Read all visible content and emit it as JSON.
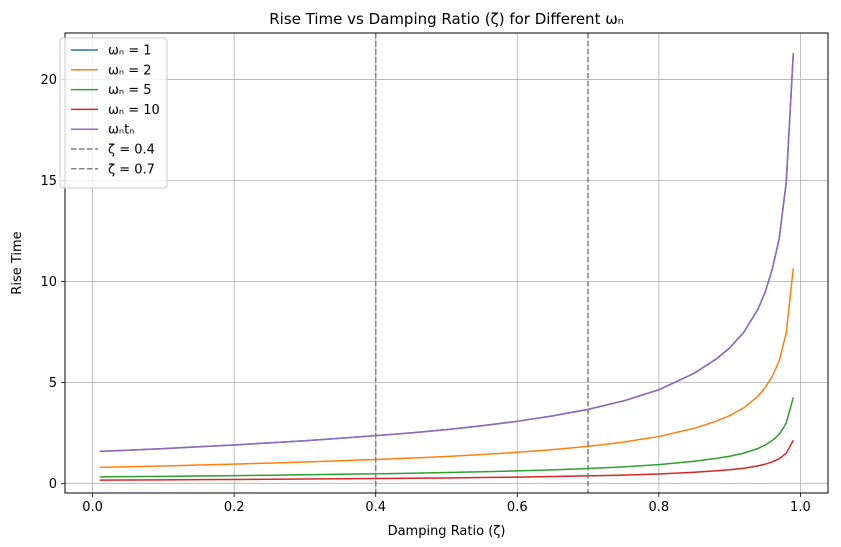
{
  "chart_data": {
    "type": "line",
    "title": "Rise Time vs Damping Ratio (ζ) for Different ωₙ",
    "xlabel": "Damping Ratio (ζ)",
    "ylabel": "Rise Time",
    "xlim": [
      -0.039,
      1.039
    ],
    "ylim": [
      -0.48,
      22.3
    ],
    "xticks": [
      0.0,
      0.2,
      0.4,
      0.6,
      0.8,
      1.0
    ],
    "xtick_labels": [
      "0.0",
      "0.2",
      "0.4",
      "0.6",
      "0.8",
      "1.0"
    ],
    "yticks": [
      0,
      5,
      10,
      15,
      20
    ],
    "ytick_labels": [
      "0",
      "5",
      "10",
      "15",
      "20"
    ],
    "grid": true,
    "legend_position": "top-left",
    "x": [
      0.01,
      0.05,
      0.1,
      0.15,
      0.2,
      0.25,
      0.3,
      0.35,
      0.4,
      0.45,
      0.5,
      0.55,
      0.6,
      0.65,
      0.7,
      0.75,
      0.8,
      0.85,
      0.88,
      0.9,
      0.92,
      0.94,
      0.95,
      0.96,
      0.97,
      0.98,
      0.99
    ],
    "series": [
      {
        "name": "ωₙ = 1",
        "color": "#1f77b4",
        "dashed": false,
        "values": [
          1.58,
          1.64,
          1.72,
          1.81,
          1.9,
          2.0,
          2.11,
          2.23,
          2.36,
          2.5,
          2.66,
          2.85,
          3.07,
          3.34,
          3.66,
          4.08,
          4.63,
          5.45,
          6.13,
          6.7,
          7.48,
          8.62,
          9.45,
          10.57,
          12.11,
          14.91,
          21.3
        ]
      },
      {
        "name": "ωₙ = 2",
        "color": "#ff7f0e",
        "dashed": false,
        "values": [
          0.79,
          0.82,
          0.86,
          0.905,
          0.95,
          1.0,
          1.055,
          1.115,
          1.18,
          1.25,
          1.33,
          1.425,
          1.535,
          1.67,
          1.83,
          2.04,
          2.315,
          2.725,
          3.065,
          3.35,
          3.74,
          4.31,
          4.725,
          5.285,
          6.055,
          7.455,
          10.65
        ]
      },
      {
        "name": "ωₙ = 5",
        "color": "#2ca02c",
        "dashed": false,
        "values": [
          0.316,
          0.328,
          0.344,
          0.362,
          0.38,
          0.4,
          0.422,
          0.446,
          0.472,
          0.5,
          0.532,
          0.57,
          0.614,
          0.668,
          0.732,
          0.816,
          0.926,
          1.09,
          1.226,
          1.34,
          1.496,
          1.724,
          1.89,
          2.114,
          2.422,
          2.982,
          4.26
        ]
      },
      {
        "name": "ωₙ = 10",
        "color": "#d62728",
        "dashed": false,
        "values": [
          0.158,
          0.164,
          0.172,
          0.181,
          0.19,
          0.2,
          0.211,
          0.223,
          0.236,
          0.25,
          0.266,
          0.285,
          0.307,
          0.334,
          0.366,
          0.408,
          0.463,
          0.545,
          0.613,
          0.67,
          0.748,
          0.862,
          0.945,
          1.057,
          1.211,
          1.491,
          2.13
        ]
      },
      {
        "name": "ωₙtₙ",
        "color": "#9467bd",
        "dashed": false,
        "values": [
          1.58,
          1.64,
          1.72,
          1.81,
          1.9,
          2.0,
          2.11,
          2.23,
          2.36,
          2.5,
          2.66,
          2.85,
          3.07,
          3.34,
          3.66,
          4.08,
          4.63,
          5.45,
          6.13,
          6.7,
          7.48,
          8.62,
          9.45,
          10.57,
          12.11,
          14.91,
          21.3
        ]
      }
    ],
    "vlines": [
      {
        "name": "ζ = 0.4",
        "x": 0.4,
        "color": "#808080",
        "dashed": true
      },
      {
        "name": "ζ = 0.7",
        "x": 0.7,
        "color": "#808080",
        "dashed": true
      }
    ]
  }
}
